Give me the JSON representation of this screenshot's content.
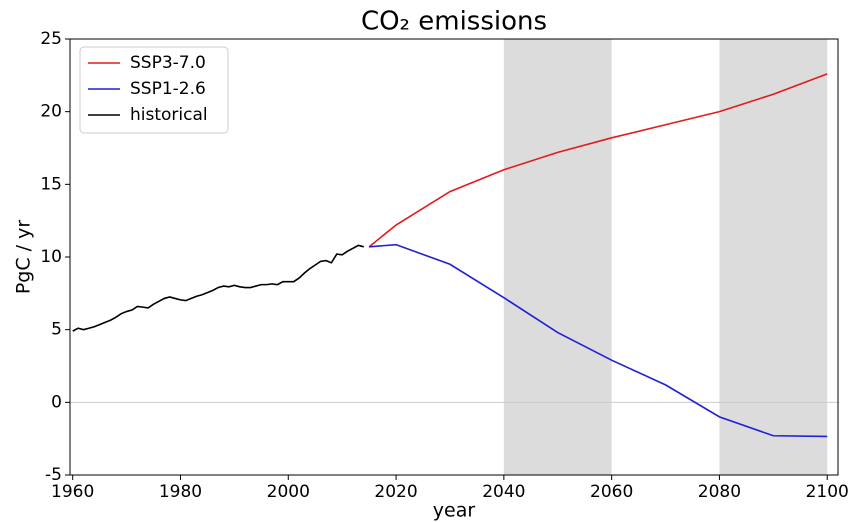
{
  "chart_data": {
    "type": "line",
    "title": "CO₂ emissions",
    "xlabel": "year",
    "ylabel": "PgC / yr",
    "xlim": [
      1959.5,
      2102
    ],
    "ylim": [
      -5,
      25
    ],
    "xticks": [
      1960,
      1980,
      2000,
      2020,
      2040,
      2060,
      2080,
      2100
    ],
    "yticks": [
      -5,
      0,
      5,
      10,
      15,
      20,
      25
    ],
    "shaded_regions": [
      [
        2040,
        2060
      ],
      [
        2080,
        2100
      ]
    ],
    "shade_color": "#dcdcdc",
    "hline": 0,
    "hline_color": "#cccccc",
    "legend": "upper left",
    "grid": false,
    "series": [
      {
        "name": "SSP3-7.0",
        "color": "#e41a1c",
        "x": [
          2015,
          2020,
          2030,
          2040,
          2050,
          2060,
          2070,
          2080,
          2090,
          2100
        ],
        "values": [
          10.7,
          12.2,
          14.5,
          16.0,
          17.2,
          18.2,
          19.1,
          20.0,
          21.2,
          22.6
        ]
      },
      {
        "name": "SSP1-2.6",
        "color": "#1f1fd6",
        "x": [
          2015,
          2020,
          2030,
          2040,
          2050,
          2060,
          2070,
          2080,
          2090,
          2100
        ],
        "values": [
          10.7,
          10.85,
          9.5,
          7.2,
          4.8,
          2.9,
          1.2,
          -1.0,
          -2.3,
          -2.35
        ]
      },
      {
        "name": "historical",
        "color": "#000000",
        "x": [
          1960,
          1961,
          1962,
          1963,
          1964,
          1965,
          1966,
          1967,
          1968,
          1969,
          1970,
          1971,
          1972,
          1973,
          1974,
          1975,
          1976,
          1977,
          1978,
          1979,
          1980,
          1981,
          1982,
          1983,
          1984,
          1985,
          1986,
          1987,
          1988,
          1989,
          1990,
          1991,
          1992,
          1993,
          1994,
          1995,
          1996,
          1997,
          1998,
          1999,
          2000,
          2001,
          2002,
          2003,
          2004,
          2005,
          2006,
          2007,
          2008,
          2009,
          2010,
          2011,
          2012,
          2013,
          2014
        ],
        "values": [
          4.9,
          5.1,
          5.0,
          5.1,
          5.2,
          5.35,
          5.5,
          5.65,
          5.85,
          6.1,
          6.25,
          6.35,
          6.6,
          6.55,
          6.5,
          6.75,
          6.95,
          7.15,
          7.25,
          7.15,
          7.05,
          7.0,
          7.15,
          7.3,
          7.4,
          7.55,
          7.7,
          7.9,
          8.0,
          7.95,
          8.05,
          7.95,
          7.9,
          7.9,
          8.0,
          8.1,
          8.1,
          8.15,
          8.1,
          8.3,
          8.3,
          8.3,
          8.55,
          8.9,
          9.2,
          9.45,
          9.7,
          9.75,
          9.6,
          10.2,
          10.15,
          10.4,
          10.6,
          10.8,
          10.7
        ]
      }
    ]
  }
}
